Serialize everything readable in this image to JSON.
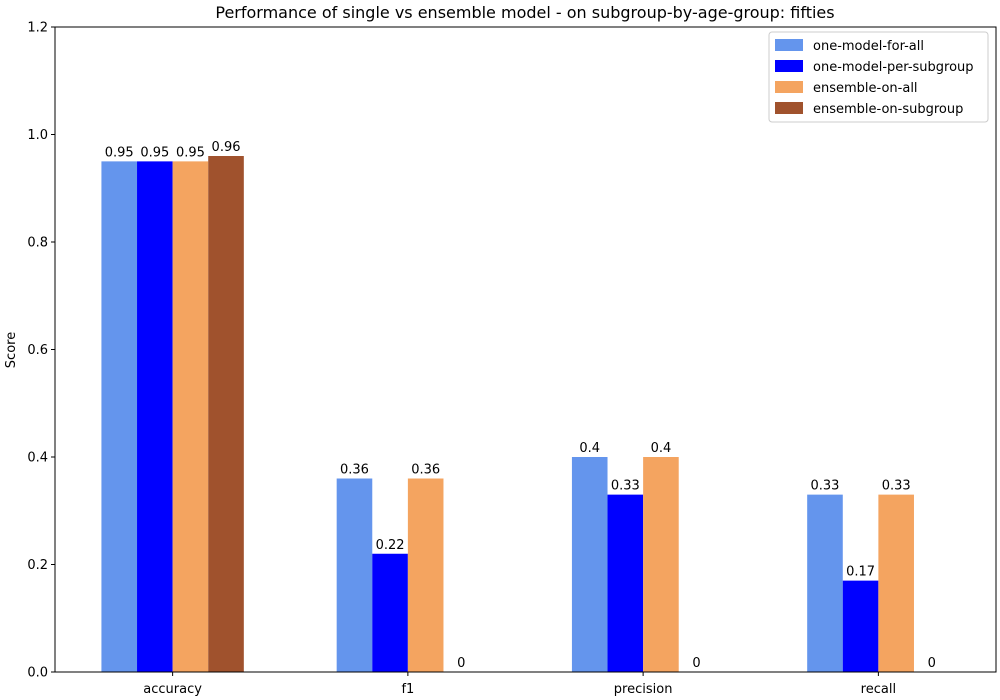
{
  "chart_data": {
    "type": "bar",
    "title": "Performance of single vs ensemble model - on subgroup-by-age-group: fifties",
    "xlabel": "",
    "ylabel": "Score",
    "ylim": [
      0,
      1.2
    ],
    "yticks": [
      "0.0",
      "0.2",
      "0.4",
      "0.6",
      "0.8",
      "1.0",
      "1.2"
    ],
    "categories": [
      "accuracy",
      "f1",
      "precision",
      "recall"
    ],
    "legend_position": "top-right",
    "grid": false,
    "series": [
      {
        "name": "one-model-for-all",
        "color": "#6495ED",
        "values": [
          0.95,
          0.36,
          0.4,
          0.33
        ],
        "labels": [
          "0.95",
          "0.36",
          "0.4",
          "0.33"
        ]
      },
      {
        "name": "one-model-per-subgroup",
        "color": "#0000FF",
        "values": [
          0.95,
          0.22,
          0.33,
          0.17
        ],
        "labels": [
          "0.95",
          "0.22",
          "0.33",
          "0.17"
        ]
      },
      {
        "name": "ensemble-on-all",
        "color": "#F4A460",
        "values": [
          0.95,
          0.36,
          0.4,
          0.33
        ],
        "labels": [
          "0.95",
          "0.36",
          "0.4",
          "0.33"
        ]
      },
      {
        "name": "ensemble-on-subgroup",
        "color": "#A0522D",
        "values": [
          0.96,
          0,
          0,
          0
        ],
        "labels": [
          "0.96",
          "0",
          "0",
          "0"
        ]
      }
    ]
  }
}
